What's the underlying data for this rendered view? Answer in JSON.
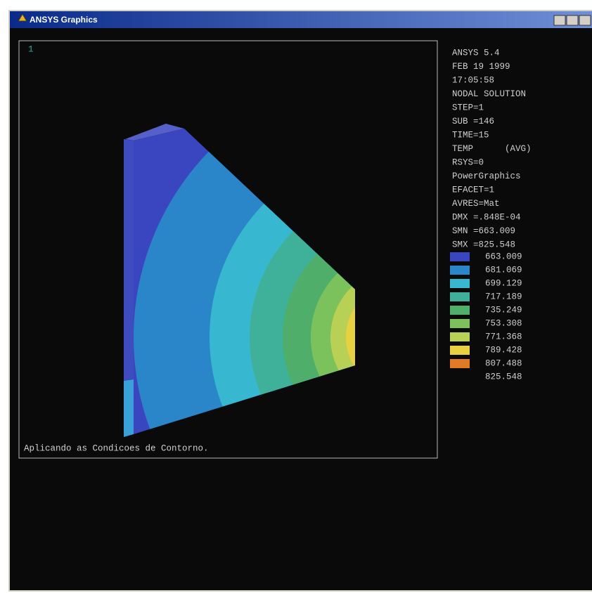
{
  "window": {
    "title": "ANSYS Graphics"
  },
  "viewport": {
    "number": "1",
    "caption": "Aplicando as Condicoes de Contorno."
  },
  "info": [
    "ANSYS 5.4",
    "FEB 19 1999",
    "17:05:58",
    "NODAL SOLUTION",
    "STEP=1",
    "SUB =146",
    "TIME=15",
    "TEMP      (AVG)",
    "RSYS=0",
    "PowerGraphics",
    "EFACET=1",
    "AVRES=Mat",
    "DMX =.848E-04",
    "SMN =663.009",
    "SMX =825.548"
  ],
  "legend": {
    "labels": [
      "663.009",
      "681.069",
      "699.129",
      "717.189",
      "735.249",
      "753.308",
      "771.368",
      "789.428",
      "807.488",
      "825.548"
    ],
    "colors": [
      "#3a45c0",
      "#2a86c8",
      "#38b8d0",
      "#3fb09a",
      "#4fae6a",
      "#7cc25c",
      "#b8d056",
      "#e8d040",
      "#e07a24"
    ]
  }
}
